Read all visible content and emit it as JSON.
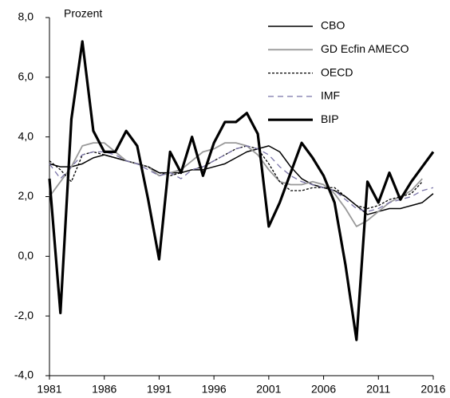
{
  "chart_data": {
    "type": "line",
    "annotation": "Prozent",
    "x": [
      1981,
      1982,
      1983,
      1984,
      1985,
      1986,
      1987,
      1988,
      1989,
      1990,
      1991,
      1992,
      1993,
      1994,
      1995,
      1996,
      1997,
      1998,
      1999,
      2000,
      2001,
      2002,
      2003,
      2004,
      2005,
      2006,
      2007,
      2008,
      2009,
      2010,
      2011,
      2012,
      2013,
      2014,
      2015,
      2016
    ],
    "xlim": [
      1981,
      2016
    ],
    "xticks": [
      1981,
      1986,
      1991,
      1996,
      2001,
      2006,
      2011,
      2016
    ],
    "ylim": [
      -4,
      8
    ],
    "yticks": [
      {
        "value": -4,
        "label": "-4,0"
      },
      {
        "value": -2,
        "label": "-2,0"
      },
      {
        "value": 0,
        "label": "0,0"
      },
      {
        "value": 2,
        "label": "2,0"
      },
      {
        "value": 4,
        "label": "4,0"
      },
      {
        "value": 6,
        "label": "6,0"
      },
      {
        "value": 8,
        "label": "8,0"
      }
    ],
    "grid": false,
    "legend": "top-right",
    "series": [
      {
        "name": "CBO",
        "color": "#000000",
        "width": 1.5,
        "dash": "none",
        "values": [
          3.1,
          3.0,
          3.0,
          3.1,
          3.3,
          3.4,
          3.3,
          3.2,
          3.1,
          3.0,
          2.8,
          2.8,
          2.8,
          2.9,
          2.9,
          3.0,
          3.1,
          3.3,
          3.5,
          3.6,
          3.7,
          3.5,
          3.0,
          2.6,
          2.4,
          2.3,
          2.2,
          2.0,
          1.7,
          1.4,
          1.5,
          1.6,
          1.6,
          1.7,
          1.8,
          2.1
        ]
      },
      {
        "name": "GD Ecfin AMECO",
        "color": "#999999",
        "width": 1.8,
        "dash": "none",
        "values": [
          2.0,
          2.5,
          3.0,
          3.7,
          3.8,
          3.8,
          3.5,
          3.2,
          3.1,
          3.0,
          2.7,
          2.8,
          2.9,
          3.2,
          3.5,
          3.6,
          3.8,
          3.8,
          3.7,
          3.4,
          2.9,
          2.5,
          2.4,
          2.4,
          2.5,
          2.4,
          2.1,
          1.6,
          1.0,
          1.2,
          1.5,
          1.8,
          2.0,
          2.2,
          2.6,
          null
        ]
      },
      {
        "name": "OECD",
        "color": "#000000",
        "width": 1.3,
        "dash": "3,2",
        "values": [
          3.2,
          2.9,
          2.5,
          3.4,
          3.5,
          3.4,
          3.3,
          3.2,
          3.1,
          3.0,
          2.8,
          2.7,
          2.8,
          2.9,
          3.0,
          3.2,
          3.4,
          3.6,
          3.7,
          3.6,
          3.1,
          2.5,
          2.2,
          2.2,
          2.3,
          2.3,
          2.3,
          2.0,
          1.7,
          1.6,
          1.7,
          1.9,
          2.0,
          2.1,
          2.5,
          null
        ]
      },
      {
        "name": "IMF",
        "color": "#7a74a8",
        "width": 1.3,
        "dash": "7,5",
        "values": [
          3.1,
          2.6,
          3.0,
          3.4,
          3.5,
          3.5,
          3.4,
          3.2,
          3.1,
          2.9,
          2.7,
          2.8,
          2.6,
          2.9,
          3.0,
          3.2,
          3.4,
          3.6,
          3.7,
          3.6,
          3.4,
          3.0,
          2.7,
          2.5,
          2.4,
          2.3,
          2.2,
          1.9,
          1.6,
          1.5,
          1.6,
          1.8,
          1.9,
          2.0,
          2.2,
          2.3
        ]
      },
      {
        "name": "BIP",
        "color": "#000000",
        "width": 3.2,
        "dash": "none",
        "values": [
          2.6,
          -1.9,
          4.6,
          7.2,
          4.2,
          3.5,
          3.5,
          4.2,
          3.7,
          1.9,
          -0.1,
          3.5,
          2.8,
          4.0,
          2.7,
          3.8,
          4.5,
          4.5,
          4.8,
          4.1,
          1.0,
          1.8,
          2.8,
          3.8,
          3.3,
          2.7,
          1.8,
          -0.3,
          -2.8,
          2.5,
          1.8,
          2.8,
          1.9,
          2.5,
          3.0,
          3.5
        ]
      }
    ]
  }
}
